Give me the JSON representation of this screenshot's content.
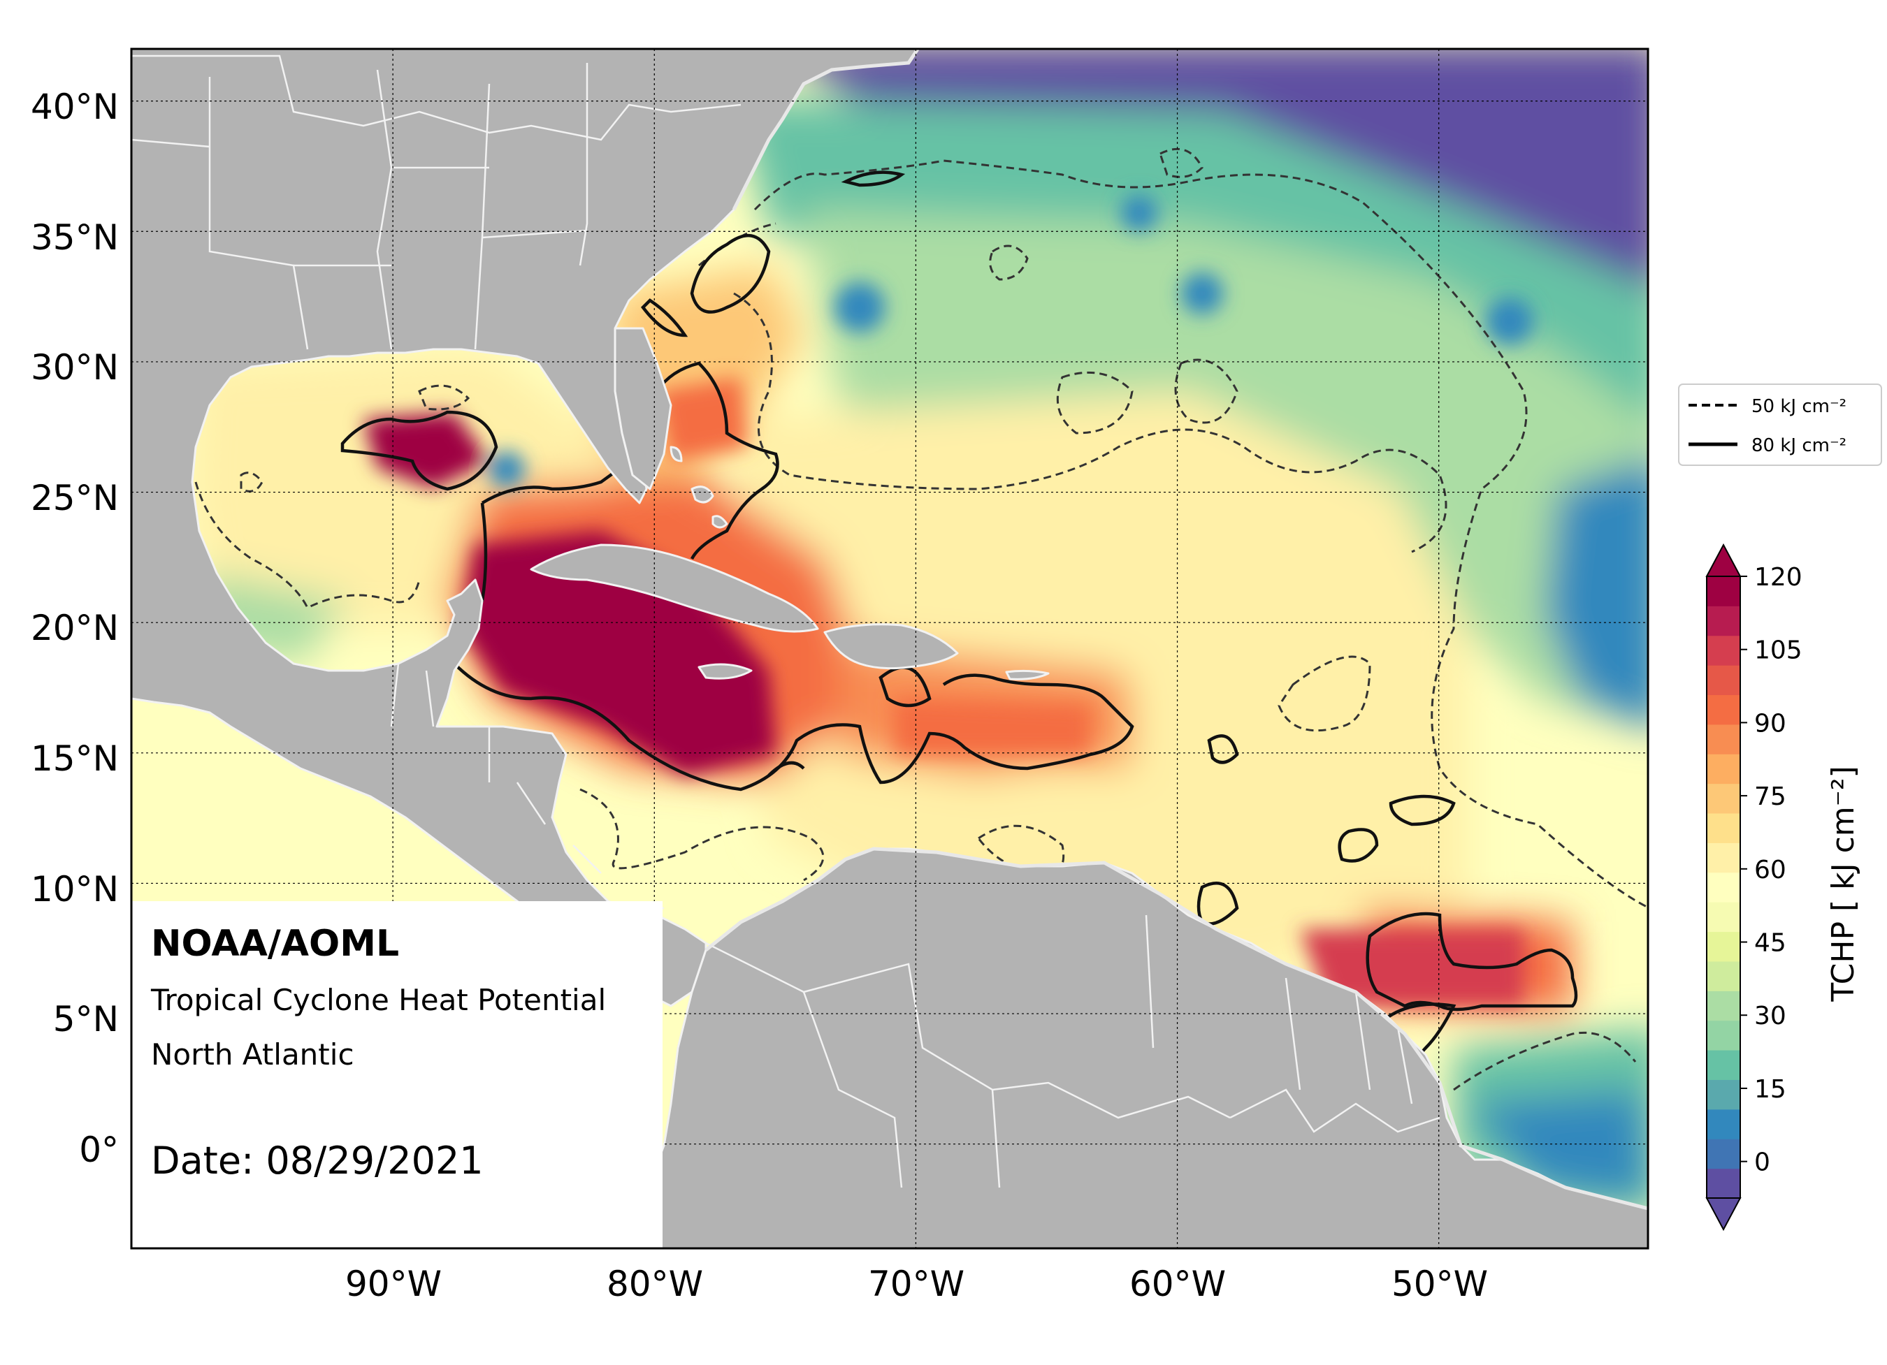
{
  "credit": {
    "org": "NOAA/AOML",
    "product": "Tropical Cyclone Heat Potential",
    "region": "North Atlantic",
    "date": "Date: 08/29/2021"
  },
  "map": {
    "lon_range": [
      -100,
      -42
    ],
    "lat_range": [
      -4,
      42
    ],
    "lat_ticks": [
      "40°N",
      "35°N",
      "30°N",
      "25°N",
      "20°N",
      "15°N",
      "10°N",
      "5°N",
      "0°"
    ],
    "lon_ticks": [
      "90°W",
      "80°W",
      "70°W",
      "60°W",
      "50°W"
    ],
    "gridlines": true,
    "land_color": "#b3b3b3",
    "border_color": "#f2f2f2"
  },
  "legend": {
    "placement": "right",
    "items": [
      {
        "label": "50 kJ cm⁻²",
        "style": "dashed",
        "value": 50
      },
      {
        "label": "80 kJ cm⁻²",
        "style": "solid",
        "value": 80
      }
    ]
  },
  "colorbar": {
    "label": "TCHP [ kJ cm⁻²]",
    "tick_labels": [
      "0",
      "15",
      "30",
      "45",
      "60",
      "75",
      "90",
      "105",
      "120"
    ],
    "min": -7.5,
    "max": 120,
    "extend": "both",
    "colors": [
      "#5e4fa2",
      "#4075b4",
      "#3288bd",
      "#5aa9ad",
      "#66c2a5",
      "#93d4a4",
      "#abdda4",
      "#cfec9d",
      "#e6f598",
      "#f6fbb2",
      "#ffffbf",
      "#fff0a8",
      "#fee08b",
      "#fdc877",
      "#fdae61",
      "#f88d52",
      "#f46d43",
      "#e65848",
      "#d53e4f",
      "#b71c50",
      "#9e0142"
    ]
  }
}
